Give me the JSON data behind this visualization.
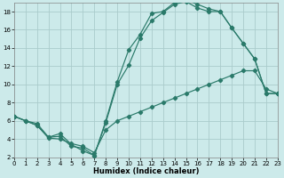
{
  "xlabel": "Humidex (Indice chaleur)",
  "bg_color": "#cceaea",
  "grid_color": "#aacccc",
  "line_color": "#2a7a6a",
  "xlim": [
    0,
    23
  ],
  "ylim": [
    2,
    19
  ],
  "xticks": [
    0,
    1,
    2,
    3,
    4,
    5,
    6,
    7,
    8,
    9,
    10,
    11,
    12,
    13,
    14,
    15,
    16,
    17,
    18,
    19,
    20,
    21,
    22,
    23
  ],
  "yticks": [
    2,
    4,
    6,
    8,
    10,
    12,
    14,
    16,
    18
  ],
  "line1_x": [
    0,
    1,
    2,
    3,
    4,
    5,
    6,
    7,
    8,
    9,
    10,
    11,
    12,
    13,
    14,
    15,
    16,
    17,
    18,
    19,
    20,
    21,
    22,
    23
  ],
  "line1_y": [
    6.5,
    6.0,
    5.7,
    4.2,
    4.6,
    3.4,
    2.7,
    2.2,
    6.0,
    10.3,
    13.8,
    15.5,
    17.8,
    18.0,
    19.0,
    19.3,
    18.8,
    18.3,
    18.0,
    16.2,
    14.5,
    12.8,
    9.0,
    9.0
  ],
  "line2_x": [
    0,
    1,
    2,
    3,
    4,
    5,
    6,
    7,
    8,
    9,
    10,
    11,
    12,
    13,
    14,
    15,
    16,
    17,
    18,
    19,
    20,
    21,
    22,
    23
  ],
  "line2_y": [
    6.5,
    6.0,
    5.5,
    4.2,
    4.3,
    3.2,
    3.0,
    2.2,
    5.8,
    10.0,
    12.1,
    15.1,
    17.0,
    17.9,
    18.8,
    19.1,
    18.4,
    18.0,
    18.0,
    16.2,
    14.5,
    12.8,
    9.0,
    9.0
  ],
  "line3_x": [
    0,
    1,
    2,
    3,
    4,
    5,
    6,
    7,
    8,
    9,
    10,
    11,
    12,
    13,
    14,
    15,
    16,
    17,
    18,
    19,
    20,
    21,
    22,
    23
  ],
  "line3_y": [
    6.5,
    6.0,
    5.5,
    4.1,
    4.0,
    3.5,
    3.2,
    2.5,
    5.0,
    6.0,
    6.5,
    7.0,
    7.5,
    8.0,
    8.5,
    9.0,
    9.5,
    10.0,
    10.5,
    11.0,
    11.5,
    11.5,
    9.5,
    9.0
  ]
}
